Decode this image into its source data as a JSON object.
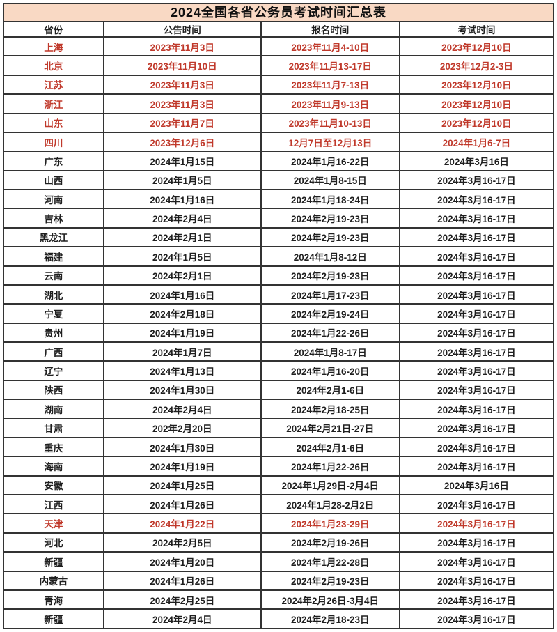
{
  "title": "2024全国各省公务员考试时间汇总表",
  "colors": {
    "title_background": "#f9d9c4",
    "border": "#333333",
    "text": "#1f1f1f",
    "highlight_text": "#c0392b",
    "paper": "#ffffff"
  },
  "table": {
    "headers": [
      "省份",
      "公告时间",
      "报名时间",
      "考试时间"
    ],
    "rows": [
      {
        "cells": [
          "上海",
          "2023年11月3日",
          "2023年11月4-10日",
          "2023年12月10日"
        ],
        "highlight": true
      },
      {
        "cells": [
          "北京",
          "2023年11月10日",
          "2023年11月13-17日",
          "2023年12月2-3日"
        ],
        "highlight": true
      },
      {
        "cells": [
          "江苏",
          "2023年11月3日",
          "2023年11月7-13日",
          "2023年12月10日"
        ],
        "highlight": true
      },
      {
        "cells": [
          "浙江",
          "2023年11月3日",
          "2023年11月9-13日",
          "2023年12月10日"
        ],
        "highlight": true
      },
      {
        "cells": [
          "山东",
          "2023年11月7日",
          "2023年11月10-13日",
          "2023年12月10日"
        ],
        "highlight": true
      },
      {
        "cells": [
          "四川",
          "2023年12月6日",
          "12月7日至12月13日",
          "2024年1月6-7日"
        ],
        "highlight": true
      },
      {
        "cells": [
          "广东",
          "2024年1月15日",
          "2024年1月16-22日",
          "2024年3月16日"
        ],
        "highlight": false
      },
      {
        "cells": [
          "山西",
          "2024年1月5日",
          "2024年1月8-15日",
          "2024年3月16-17日"
        ],
        "highlight": false
      },
      {
        "cells": [
          "河南",
          "2024年1月16日",
          "2024年1月18-24日",
          "2024年3月16-17日"
        ],
        "highlight": false
      },
      {
        "cells": [
          "吉林",
          "2024年2月4日",
          "2024年2月19-23日",
          "2024年3月16-17日"
        ],
        "highlight": false
      },
      {
        "cells": [
          "黑龙江",
          "2024年2月1日",
          "2024年2月19-23日",
          "2024年3月16-17日"
        ],
        "highlight": false
      },
      {
        "cells": [
          "福建",
          "2024年1月5日",
          "2024年1月8-12日",
          "2024年3月16-17日"
        ],
        "highlight": false
      },
      {
        "cells": [
          "云南",
          "2024年2月1日",
          "2024年2月19-23日",
          "2024年3月16-17日"
        ],
        "highlight": false
      },
      {
        "cells": [
          "湖北",
          "2024年1月16日",
          "2024年1月17-23日",
          "2024年3月16-17日"
        ],
        "highlight": false
      },
      {
        "cells": [
          "宁夏",
          "2024年2月18日",
          "2024年2月19-24日",
          "2024年3月16-17日"
        ],
        "highlight": false
      },
      {
        "cells": [
          "贵州",
          "2024年1月19日",
          "2024年1月22-26日",
          "2024年3月16-17日"
        ],
        "highlight": false
      },
      {
        "cells": [
          "广西",
          "2024年1月7日",
          "2024年1月8-17日",
          "2024年3月16-17日"
        ],
        "highlight": false
      },
      {
        "cells": [
          "辽宁",
          "2024年1月13日",
          "2024年1月16-20日",
          "2024年3月16-17日"
        ],
        "highlight": false
      },
      {
        "cells": [
          "陕西",
          "2024年1月30日",
          "2024年2月1-6日",
          "2024年3月16-17日"
        ],
        "highlight": false
      },
      {
        "cells": [
          "湖南",
          "2024年2月4日",
          "2024年2月18-25日",
          "2024年3月16-17日"
        ],
        "highlight": false
      },
      {
        "cells": [
          "甘肃",
          "202年2月20日",
          "2024年2月21日-27日",
          "2024年3月16-17日"
        ],
        "highlight": false
      },
      {
        "cells": [
          "重庆",
          "2024年1月30日",
          "2024年2月1-6日",
          "2024年3月16-17日"
        ],
        "highlight": false
      },
      {
        "cells": [
          "海南",
          "2024年1月19日",
          "2024年1月22-26日",
          "2024年3月16-17日"
        ],
        "highlight": false
      },
      {
        "cells": [
          "安徽",
          "2024年1月25日",
          "2024年1月29日-2月4日",
          "2024年3月16日"
        ],
        "highlight": false
      },
      {
        "cells": [
          "江西",
          "2024年1月26日",
          "2024年1月28-2月2日",
          "2024年3月16-17日"
        ],
        "highlight": false
      },
      {
        "cells": [
          "天津",
          "2024年1月22日",
          "2024年1月23-29日",
          "2024年3月16-17日"
        ],
        "highlight": true
      },
      {
        "cells": [
          "河北",
          "2024年2月5日",
          "2024年2月19-26日",
          "2024年3月16-17日"
        ],
        "highlight": false
      },
      {
        "cells": [
          "新疆",
          "2024年1月20日",
          "2024年1月22-28日",
          "2024年3月16-17日"
        ],
        "highlight": false
      },
      {
        "cells": [
          "内蒙古",
          "2024年1月26日",
          "2024年2月19-23日",
          "2024年3月16-17日"
        ],
        "highlight": false
      },
      {
        "cells": [
          "青海",
          "2024年2月25日",
          "2024年2月26日-3月4日",
          "2024年3月16-17日"
        ],
        "highlight": false
      },
      {
        "cells": [
          "新疆",
          "2024年2月4日",
          "2024年2月18-23日",
          "2024年3月16-17日"
        ],
        "highlight": false
      }
    ]
  }
}
